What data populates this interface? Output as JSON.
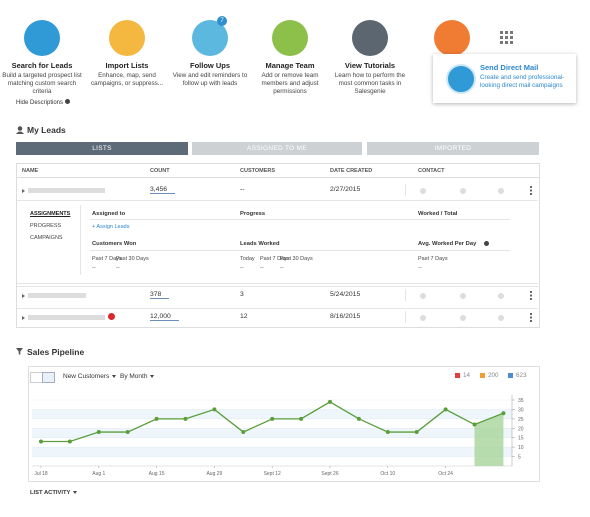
{
  "quick_actions": [
    {
      "title": "Search for Leads",
      "description": "Build a targeted prospect list matching custom search criteria"
    },
    {
      "title": "Import Lists",
      "description": "Enhance, map, send campaigns, or suppress..."
    },
    {
      "title": "Follow Ups",
      "description": "View and edit reminders to follow up with leads"
    },
    {
      "title": "Manage Team",
      "description": "Add or remove team members and adjust permissions"
    },
    {
      "title": "View Tutorials",
      "description": "Learn how to perform the most common tasks in Salesgenie"
    }
  ],
  "follow_ups_badge": "7",
  "hide_descriptions": "Hide Descriptions",
  "popup": {
    "title": "Send Direct Mail",
    "description": "Create and send professional-looking direct mail campaigns"
  },
  "my_leads": {
    "title": "My Leads",
    "tabs": [
      "LISTS",
      "ASSIGNED TO ME",
      "IMPORTED"
    ],
    "columns": [
      "NAME",
      "COUNT",
      "CUSTOMERS",
      "DATE CREATED",
      "CONTACT"
    ],
    "rows": [
      {
        "count": "3,456",
        "customers": "--",
        "date": "2/27/2015"
      },
      {
        "count": "378",
        "customers": "3",
        "date": "5/24/2015"
      },
      {
        "count": "12,000",
        "customers": "12",
        "date": "8/16/2015"
      }
    ],
    "detail": {
      "menu": [
        "ASSIGNMENTS",
        "PROGRESS",
        "CAMPAIGNS"
      ],
      "assigned_to": "Assigned to",
      "progress": "Progress",
      "worked_total": "Worked / Total",
      "assign_leads": "+ Assign Leads",
      "customers_won": "Customers Won",
      "leads_worked": "Leads Worked",
      "avg_worked": "Avg. Worked Per Day",
      "customers_won_periods": [
        "Past 7 Days",
        "Past 30 Days"
      ],
      "leads_worked_periods": [
        "Today",
        "Past 7 Days",
        "Past 30 Days"
      ],
      "avg_periods": [
        "Past 7 Days"
      ],
      "empty": "--"
    }
  },
  "sales_pipeline": {
    "title": "Sales Pipeline",
    "metric": "New Customers",
    "period": "By Month",
    "legend": [
      14,
      200,
      623
    ],
    "list_activity": "LIST ACTIVITY",
    "chart": {
      "type": "line",
      "categories": [
        "Jul 18",
        null,
        "Aug 1",
        null,
        "Aug 15",
        null,
        "Aug 29",
        null,
        "Sept 12",
        null,
        "Sept 26",
        null,
        "Oct 10",
        null,
        "Oct 24",
        null,
        null
      ],
      "values": [
        13,
        13,
        18,
        18,
        25,
        25,
        30,
        18,
        25,
        25,
        34,
        25,
        18,
        18,
        30,
        22,
        28
      ],
      "color": "#5a9e3a",
      "ylim": [
        0,
        35
      ],
      "yticks": [
        5,
        10,
        15,
        20,
        25,
        30,
        35
      ]
    }
  }
}
